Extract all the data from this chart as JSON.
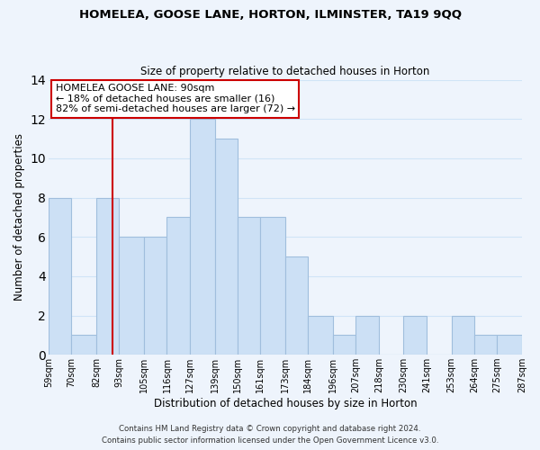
{
  "title": "HOMELEA, GOOSE LANE, HORTON, ILMINSTER, TA19 9QQ",
  "subtitle": "Size of property relative to detached houses in Horton",
  "xlabel": "Distribution of detached houses by size in Horton",
  "ylabel": "Number of detached properties",
  "bins": [
    59,
    70,
    82,
    93,
    105,
    116,
    127,
    139,
    150,
    161,
    173,
    184,
    196,
    207,
    218,
    230,
    241,
    253,
    264,
    275,
    287
  ],
  "counts": [
    8,
    1,
    8,
    6,
    6,
    7,
    12,
    11,
    7,
    7,
    5,
    2,
    1,
    2,
    0,
    2,
    0,
    2,
    1,
    1
  ],
  "bar_color": "#cce0f5",
  "bar_edge_color": "#a0bedd",
  "ref_line_x": 90,
  "ref_line_color": "#cc0000",
  "ylim": [
    0,
    14
  ],
  "annotation_title": "HOMELEA GOOSE LANE: 90sqm",
  "annotation_line1": "← 18% of detached houses are smaller (16)",
  "annotation_line2": "82% of semi-detached houses are larger (72) →",
  "annotation_box_color": "#ffffff",
  "annotation_box_edge": "#cc0000",
  "tick_labels": [
    "59sqm",
    "70sqm",
    "82sqm",
    "93sqm",
    "105sqm",
    "116sqm",
    "127sqm",
    "139sqm",
    "150sqm",
    "161sqm",
    "173sqm",
    "184sqm",
    "196sqm",
    "207sqm",
    "218sqm",
    "230sqm",
    "241sqm",
    "253sqm",
    "264sqm",
    "275sqm",
    "287sqm"
  ],
  "footer1": "Contains HM Land Registry data © Crown copyright and database right 2024.",
  "footer2": "Contains public sector information licensed under the Open Government Licence v3.0.",
  "grid_color": "#d0e4f7",
  "background_color": "#eef4fc",
  "title_fontsize": 9.5,
  "subtitle_fontsize": 8.5
}
